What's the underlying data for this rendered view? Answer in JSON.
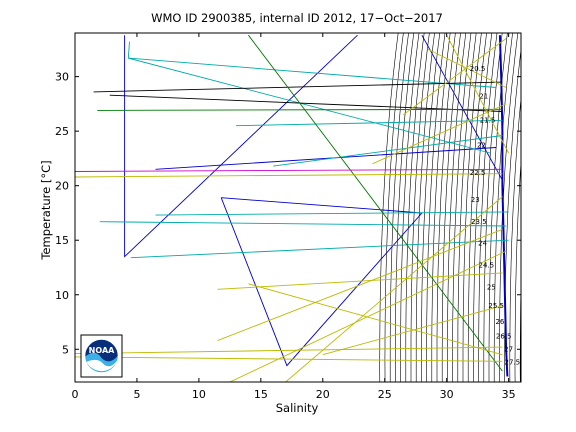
{
  "chart_data": {
    "type": "line",
    "title": "WMO ID 2900385, internal ID 2012, 17−Oct−2017",
    "xlabel": "Salinity",
    "ylabel": "Temperature [°C]",
    "xlim": [
      0,
      36
    ],
    "ylim": [
      2,
      34
    ],
    "xticks": [
      0,
      5,
      10,
      15,
      20,
      25,
      30,
      35
    ],
    "yticks": [
      5,
      10,
      15,
      20,
      25,
      30
    ],
    "grid": false,
    "logo": "NOAA",
    "density_contours": {
      "color": "#000000",
      "labels": [
        "20.5",
        "21",
        "21.5",
        "22",
        "22.5",
        "23",
        "23.5",
        "24",
        "24.5",
        "25",
        "25.5",
        "26",
        "26.5",
        "27",
        "27.5"
      ]
    },
    "series": [
      {
        "color": "#0000bb",
        "points": [
          [
            34.3,
            33.8
          ],
          [
            34.4,
            30.0
          ],
          [
            34.5,
            25.0
          ],
          [
            34.5,
            20.0
          ],
          [
            34.6,
            15.0
          ],
          [
            34.7,
            10.0
          ],
          [
            34.8,
            5.0
          ],
          [
            34.9,
            2.5
          ]
        ]
      },
      {
        "color": "#0000cc",
        "points": [
          [
            4.0,
            33.8
          ],
          [
            4.0,
            13.5
          ],
          [
            22.8,
            33.8
          ]
        ]
      },
      {
        "color": "#0000cc",
        "points": [
          [
            6.5,
            21.5
          ],
          [
            34.0,
            23.5
          ]
        ]
      },
      {
        "color": "#0000cc",
        "points": [
          [
            11.8,
            18.9
          ],
          [
            17.1,
            3.5
          ],
          [
            28.0,
            17.5
          ],
          [
            11.8,
            18.9
          ]
        ]
      },
      {
        "color": "#0000cc",
        "points": [
          [
            28.0,
            33.8
          ],
          [
            34.5,
            20.5
          ]
        ]
      },
      {
        "color": "#00aaaa",
        "points": [
          [
            4.4,
            33.2
          ],
          [
            4.3,
            31.7
          ],
          [
            33.5,
            23.0
          ]
        ]
      },
      {
        "color": "#00aaaa",
        "points": [
          [
            4.3,
            31.7
          ],
          [
            34.0,
            29.0
          ]
        ]
      },
      {
        "color": "#00aaaa",
        "points": [
          [
            2.0,
            16.7
          ],
          [
            34.8,
            16.3
          ]
        ]
      },
      {
        "color": "#00aaaa",
        "points": [
          [
            4.5,
            13.4
          ],
          [
            35.0,
            15.0
          ]
        ]
      },
      {
        "color": "#00aaaa",
        "points": [
          [
            6.5,
            17.3
          ],
          [
            35.0,
            17.6
          ]
        ]
      },
      {
        "color": "#00aaaa",
        "points": [
          [
            16.0,
            21.8
          ],
          [
            34.5,
            24.6
          ]
        ]
      },
      {
        "color": "#00aaaa",
        "points": [
          [
            13.0,
            25.5
          ],
          [
            34.5,
            26.0
          ]
        ]
      },
      {
        "color": "#000000",
        "points": [
          [
            1.5,
            28.6
          ],
          [
            34.5,
            29.5
          ]
        ]
      },
      {
        "color": "#000000",
        "points": [
          [
            2.8,
            28.3
          ],
          [
            34.5,
            26.8
          ]
        ]
      },
      {
        "color": "#007700",
        "points": [
          [
            1.8,
            26.9
          ],
          [
            34.5,
            27.0
          ]
        ]
      },
      {
        "color": "#007700",
        "points": [
          [
            14.0,
            33.8
          ],
          [
            34.5,
            3.0
          ]
        ]
      },
      {
        "color": "#cc00cc",
        "points": [
          [
            0.0,
            21.3
          ],
          [
            34.5,
            21.5
          ]
        ]
      },
      {
        "color": "#bbbb00",
        "points": [
          [
            0.0,
            20.8
          ],
          [
            34.5,
            21.1
          ]
        ]
      },
      {
        "color": "#bbbb00",
        "points": [
          [
            0.0,
            4.6
          ],
          [
            34.5,
            5.2
          ]
        ]
      },
      {
        "color": "#bbbb00",
        "points": [
          [
            0.0,
            4.3
          ],
          [
            34.5,
            3.9
          ]
        ]
      },
      {
        "color": "#bbbb00",
        "points": [
          [
            11.5,
            5.8
          ],
          [
            34.5,
            16.0
          ]
        ]
      },
      {
        "color": "#bbbb00",
        "points": [
          [
            11.5,
            10.5
          ],
          [
            34.5,
            12.0
          ]
        ]
      },
      {
        "color": "#bbbb00",
        "points": [
          [
            14.0,
            11.0
          ],
          [
            34.5,
            4.5
          ]
        ]
      },
      {
        "color": "#bbbb00",
        "points": [
          [
            17.0,
            2.0
          ],
          [
            34.5,
            19.0
          ]
        ]
      },
      {
        "color": "#bbbb00",
        "points": [
          [
            20.0,
            4.5
          ],
          [
            34.5,
            9.0
          ]
        ]
      },
      {
        "color": "#bbbb00",
        "points": [
          [
            30.0,
            33.8
          ],
          [
            35.0,
            23.0
          ]
        ]
      },
      {
        "color": "#bbbb00",
        "points": [
          [
            26.5,
            26.5
          ],
          [
            34.8,
            33.5
          ]
        ]
      },
      {
        "color": "#bbbb00",
        "points": [
          [
            28.5,
            32.5
          ],
          [
            34.8,
            29.0
          ]
        ]
      },
      {
        "color": "#bbbb00",
        "points": [
          [
            24.0,
            22.0
          ],
          [
            34.8,
            27.5
          ]
        ]
      },
      {
        "color": "#bbbb00",
        "points": [
          [
            12.5,
            2.0
          ],
          [
            34.8,
            14.0
          ]
        ]
      }
    ]
  }
}
